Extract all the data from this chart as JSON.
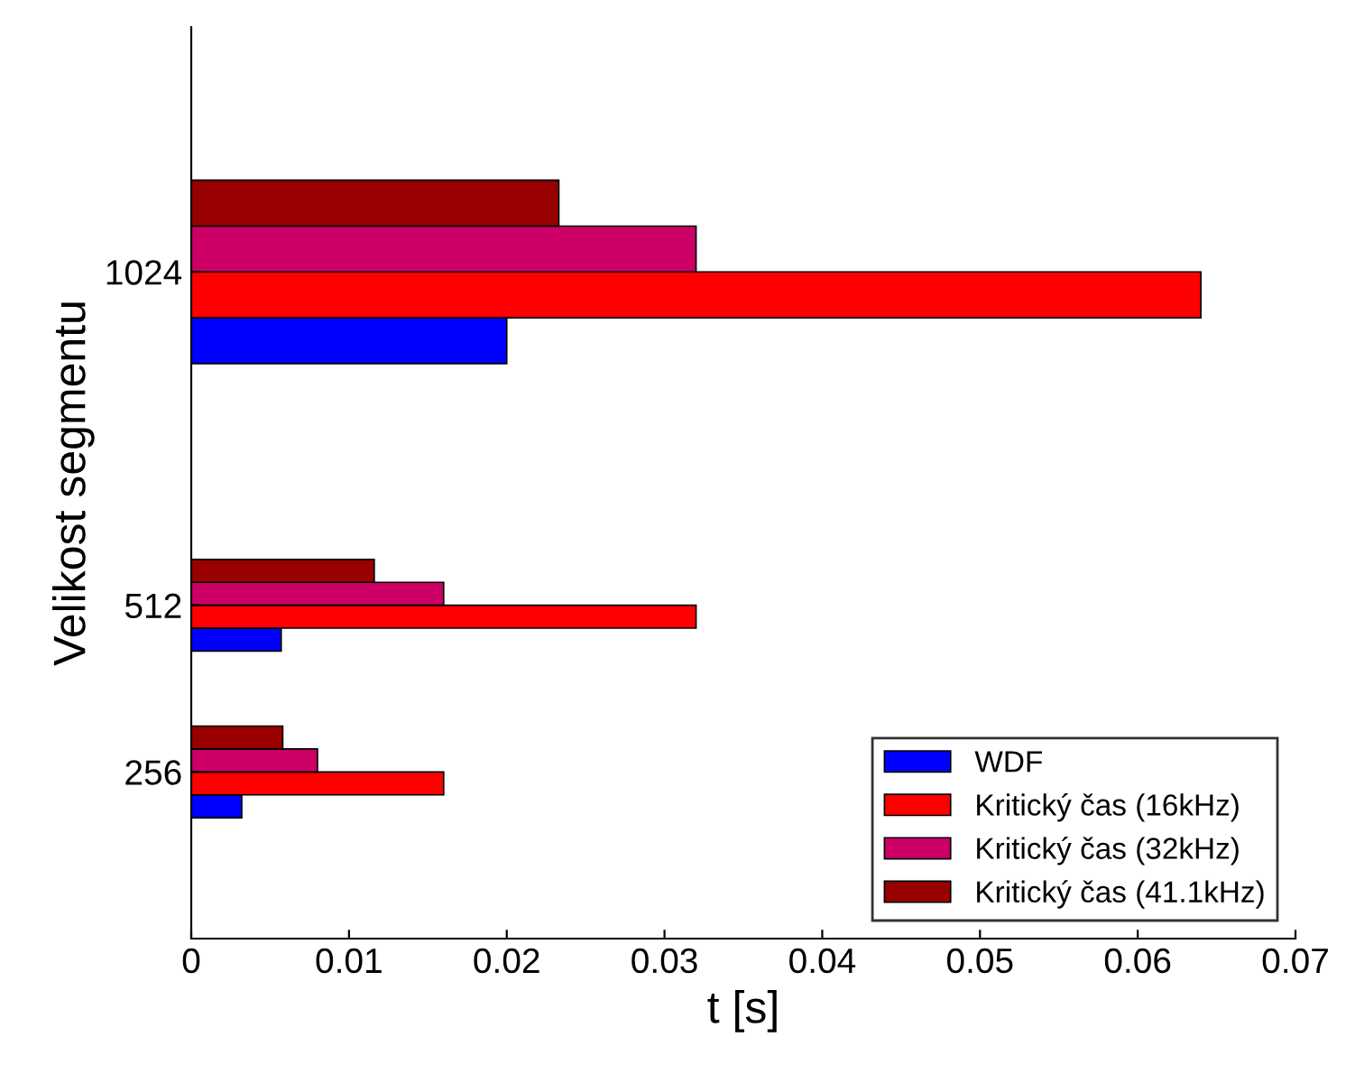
{
  "chart_data": {
    "type": "bar",
    "orientation": "horizontal",
    "xlabel": "t [s]",
    "ylabel": "Velikost segmentu",
    "x": [
      256,
      512,
      1024
    ],
    "series": [
      {
        "name": "WDF",
        "color": "#0000ff",
        "values": [
          0.0032,
          0.0057,
          0.02
        ]
      },
      {
        "name": "Kritický čas (16kHz)",
        "color": "#ff0000",
        "values": [
          0.016,
          0.032,
          0.064
        ]
      },
      {
        "name": "Kritický čas (32kHz)",
        "color": "#cc0066",
        "values": [
          0.008,
          0.016,
          0.032
        ]
      },
      {
        "name": "Kritický čas (41.1kHz)",
        "color": "#990000",
        "values": [
          0.0058,
          0.0116,
          0.0233
        ]
      }
    ],
    "xlim": [
      0,
      0.07
    ],
    "xticks": [
      0,
      0.01,
      0.02,
      0.03,
      0.04,
      0.05,
      0.06,
      0.07
    ],
    "ylim": [
      0,
      1400
    ],
    "yticks": [
      256,
      512,
      1024
    ],
    "legend": "bottom right",
    "grid": false
  }
}
